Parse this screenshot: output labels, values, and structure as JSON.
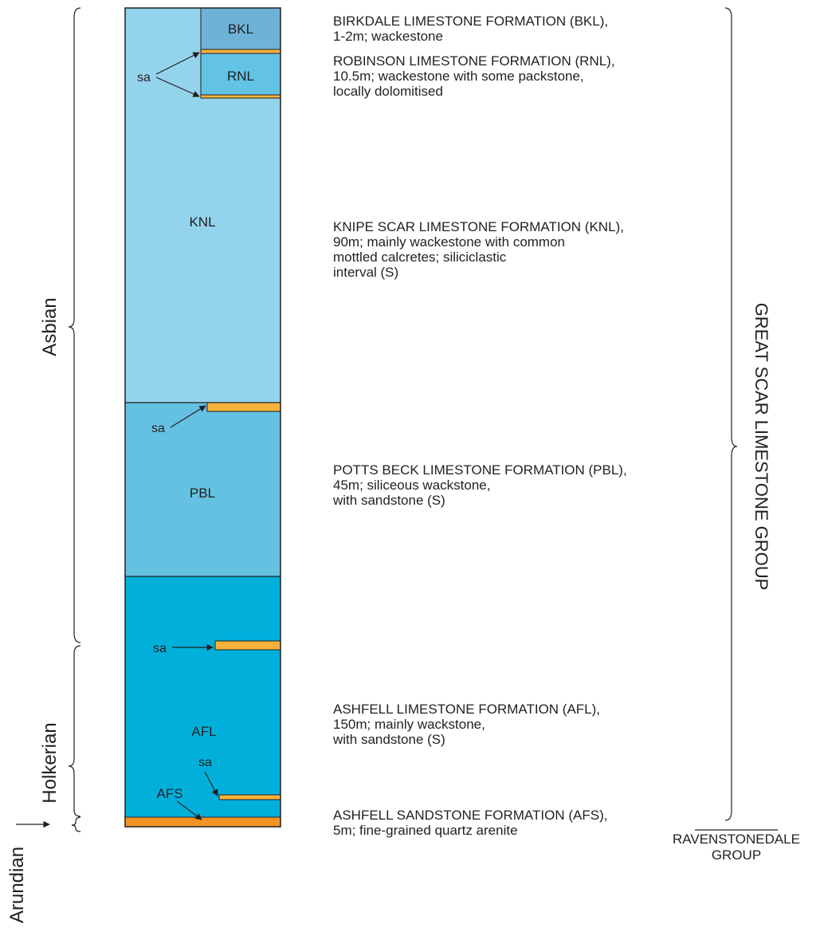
{
  "colors": {
    "upper_unit": "#93d3ec",
    "bkl": "#6fb2d7",
    "rnl": "#62c3e4",
    "pbl": "#65c1e1",
    "afl": "#00b0db",
    "sandstone": "#f7b23b",
    "afs": "#f29423",
    "outline": "#231f20"
  },
  "column_labels": {
    "bkl": "BKL",
    "rnl": "RNL",
    "knl": "KNL",
    "pbl": "PBL",
    "afl": "AFL",
    "afs": "AFS"
  },
  "sa_label": "sa",
  "stages": {
    "asbian": "Asbian",
    "holkerian": "Holkerian",
    "arundian": "Arundian"
  },
  "descriptions": {
    "bkl": [
      "BIRKDALE LIMESTONE FORMATION (BKL),",
      "1-2m; wackestone"
    ],
    "rnl": [
      "ROBINSON LIMESTONE FORMATION (RNL),",
      "10.5m; wackestone with some packstone,",
      "locally dolomitised"
    ],
    "knl": [
      "KNIPE SCAR LIMESTONE FORMATION (KNL),",
      "90m; mainly wackestone with common",
      "mottled calcretes; siliciclastic",
      "interval (S)"
    ],
    "pbl": [
      "POTTS BECK LIMESTONE FORMATION (PBL),",
      "45m; siliceous wackstone,",
      "with sandstone (S)"
    ],
    "afl": [
      "ASHFELL LIMESTONE FORMATION (AFL),",
      "150m; mainly wackstone,",
      "with sandstone (S)"
    ],
    "afs": [
      "ASHFELL SANDSTONE FORMATION (AFS),",
      "5m; fine-grained quartz arenite"
    ]
  },
  "groups": {
    "great_scar": "GREAT SCAR LIMESTONE GROUP",
    "ravenstonedale": [
      "RAVENSTONEDALE",
      "GROUP"
    ]
  }
}
